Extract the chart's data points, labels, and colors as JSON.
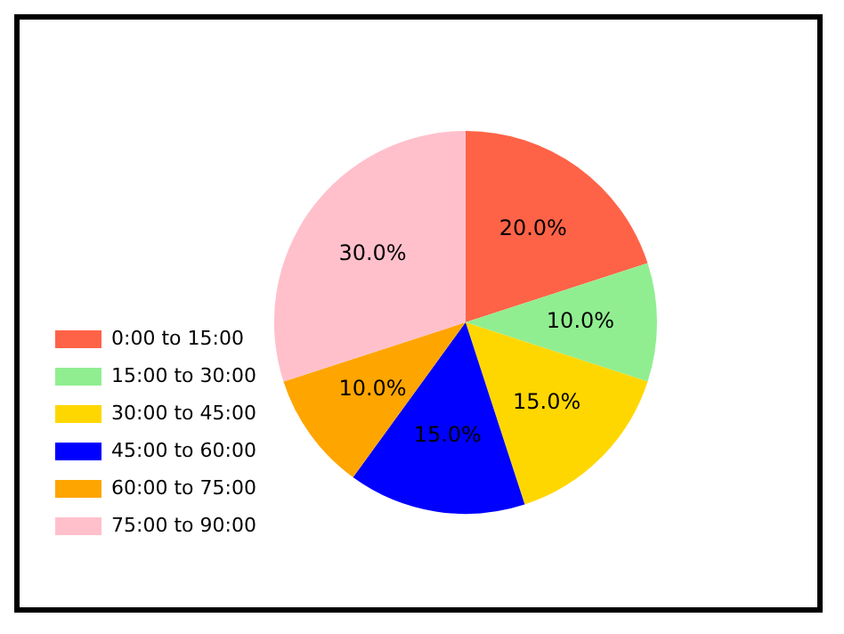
{
  "chart_data": {
    "type": "pie",
    "categories": [
      "0:00 to 15:00",
      "15:00 to 30:00",
      "30:00 to 45:00",
      "45:00 to 60:00",
      "60:00 to 75:00",
      "75:00 to 90:00"
    ],
    "values": [
      20,
      10,
      15,
      15,
      10,
      30
    ],
    "colors": [
      "#ff6347",
      "#90ee90",
      "#ffd700",
      "#0000ff",
      "#ffa500",
      "#ffc0cb"
    ],
    "value_labels": [
      "20.0%",
      "10.0%",
      "15.0%",
      "15.0%",
      "10.0%",
      "30.0%"
    ],
    "legend": "bottom left"
  }
}
